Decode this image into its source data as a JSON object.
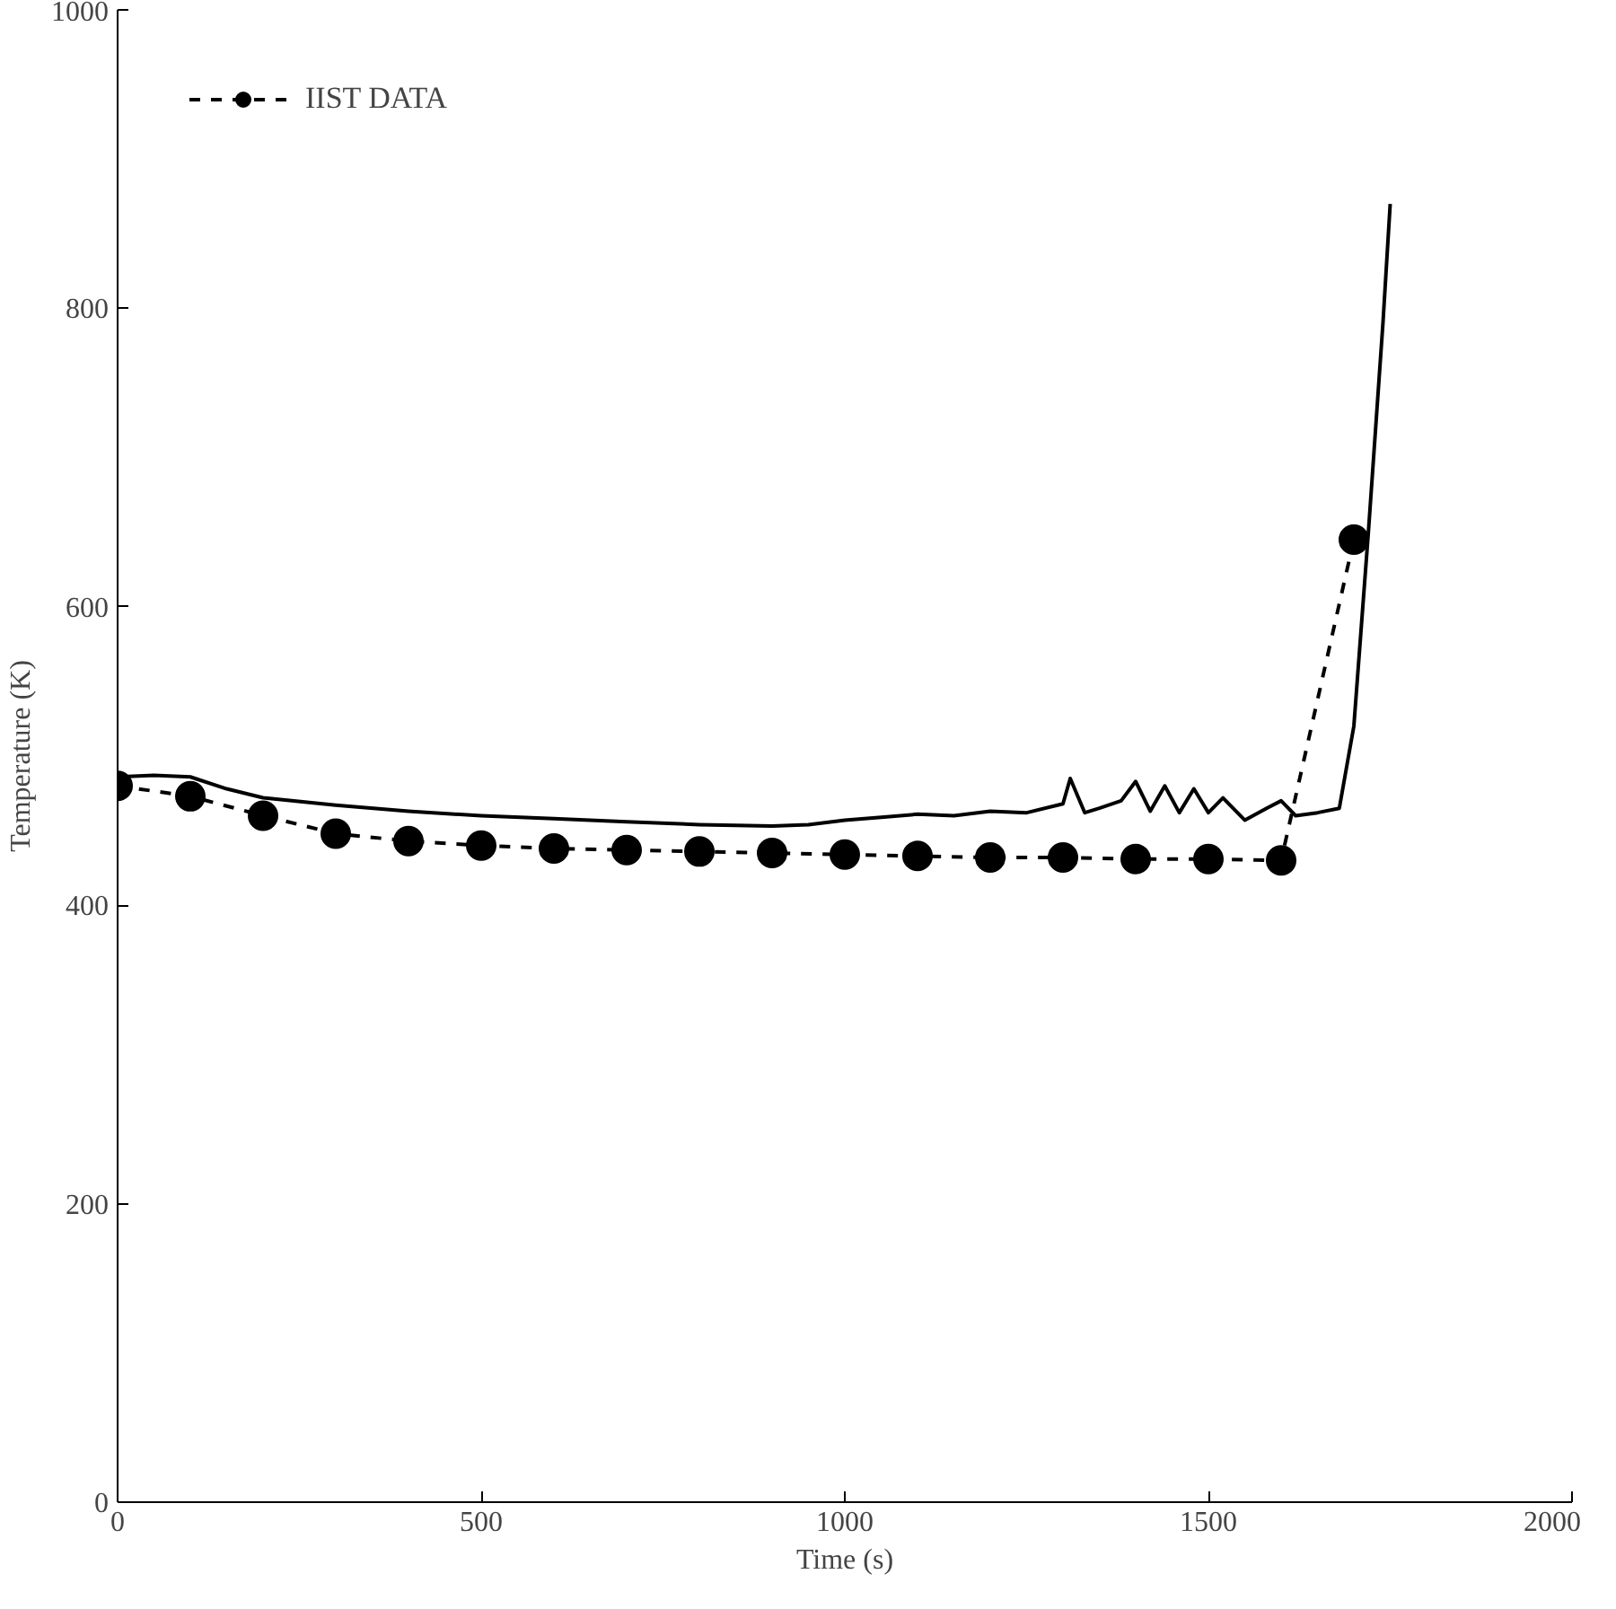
{
  "chart_data": {
    "type": "line",
    "xlabel": "Time (s)",
    "ylabel": "Temperature (K)",
    "xlim": [
      0,
      2000
    ],
    "ylim": [
      0,
      1000
    ],
    "xticks": [
      0,
      500,
      1000,
      1500,
      2000
    ],
    "yticks": [
      0,
      200,
      400,
      600,
      800,
      1000
    ],
    "grid": false,
    "legend": "top left",
    "series": [
      {
        "name": "IIST DATA",
        "color": "#000000",
        "marker": "circle",
        "line_style": "dashed",
        "x": [
          0,
          100,
          200,
          300,
          400,
          500,
          600,
          700,
          800,
          900,
          1000,
          1100,
          1200,
          1300,
          1400,
          1500,
          1600,
          1700
        ],
        "values": [
          480,
          473,
          460,
          448,
          443,
          440,
          438,
          437,
          436,
          435,
          434,
          433,
          432,
          432,
          431,
          431,
          430,
          645
        ]
      },
      {
        "color": "#000000",
        "marker": "none",
        "line_style": "solid",
        "x": [
          0,
          50,
          100,
          150,
          200,
          300,
          400,
          500,
          600,
          700,
          800,
          900,
          950,
          1000,
          1050,
          1100,
          1150,
          1200,
          1250,
          1300,
          1310,
          1330,
          1350,
          1380,
          1400,
          1420,
          1440,
          1460,
          1480,
          1500,
          1520,
          1550,
          1580,
          1600,
          1620,
          1650,
          1680,
          1700,
          1720,
          1740,
          1750
        ],
        "values": [
          486,
          487,
          486,
          478,
          472,
          467,
          463,
          460,
          458,
          456,
          454,
          453,
          454,
          457,
          459,
          461,
          460,
          463,
          462,
          468,
          485,
          462,
          465,
          470,
          483,
          463,
          480,
          462,
          478,
          462,
          472,
          457,
          465,
          470,
          460,
          462,
          465,
          520,
          650,
          790,
          870
        ]
      }
    ]
  }
}
